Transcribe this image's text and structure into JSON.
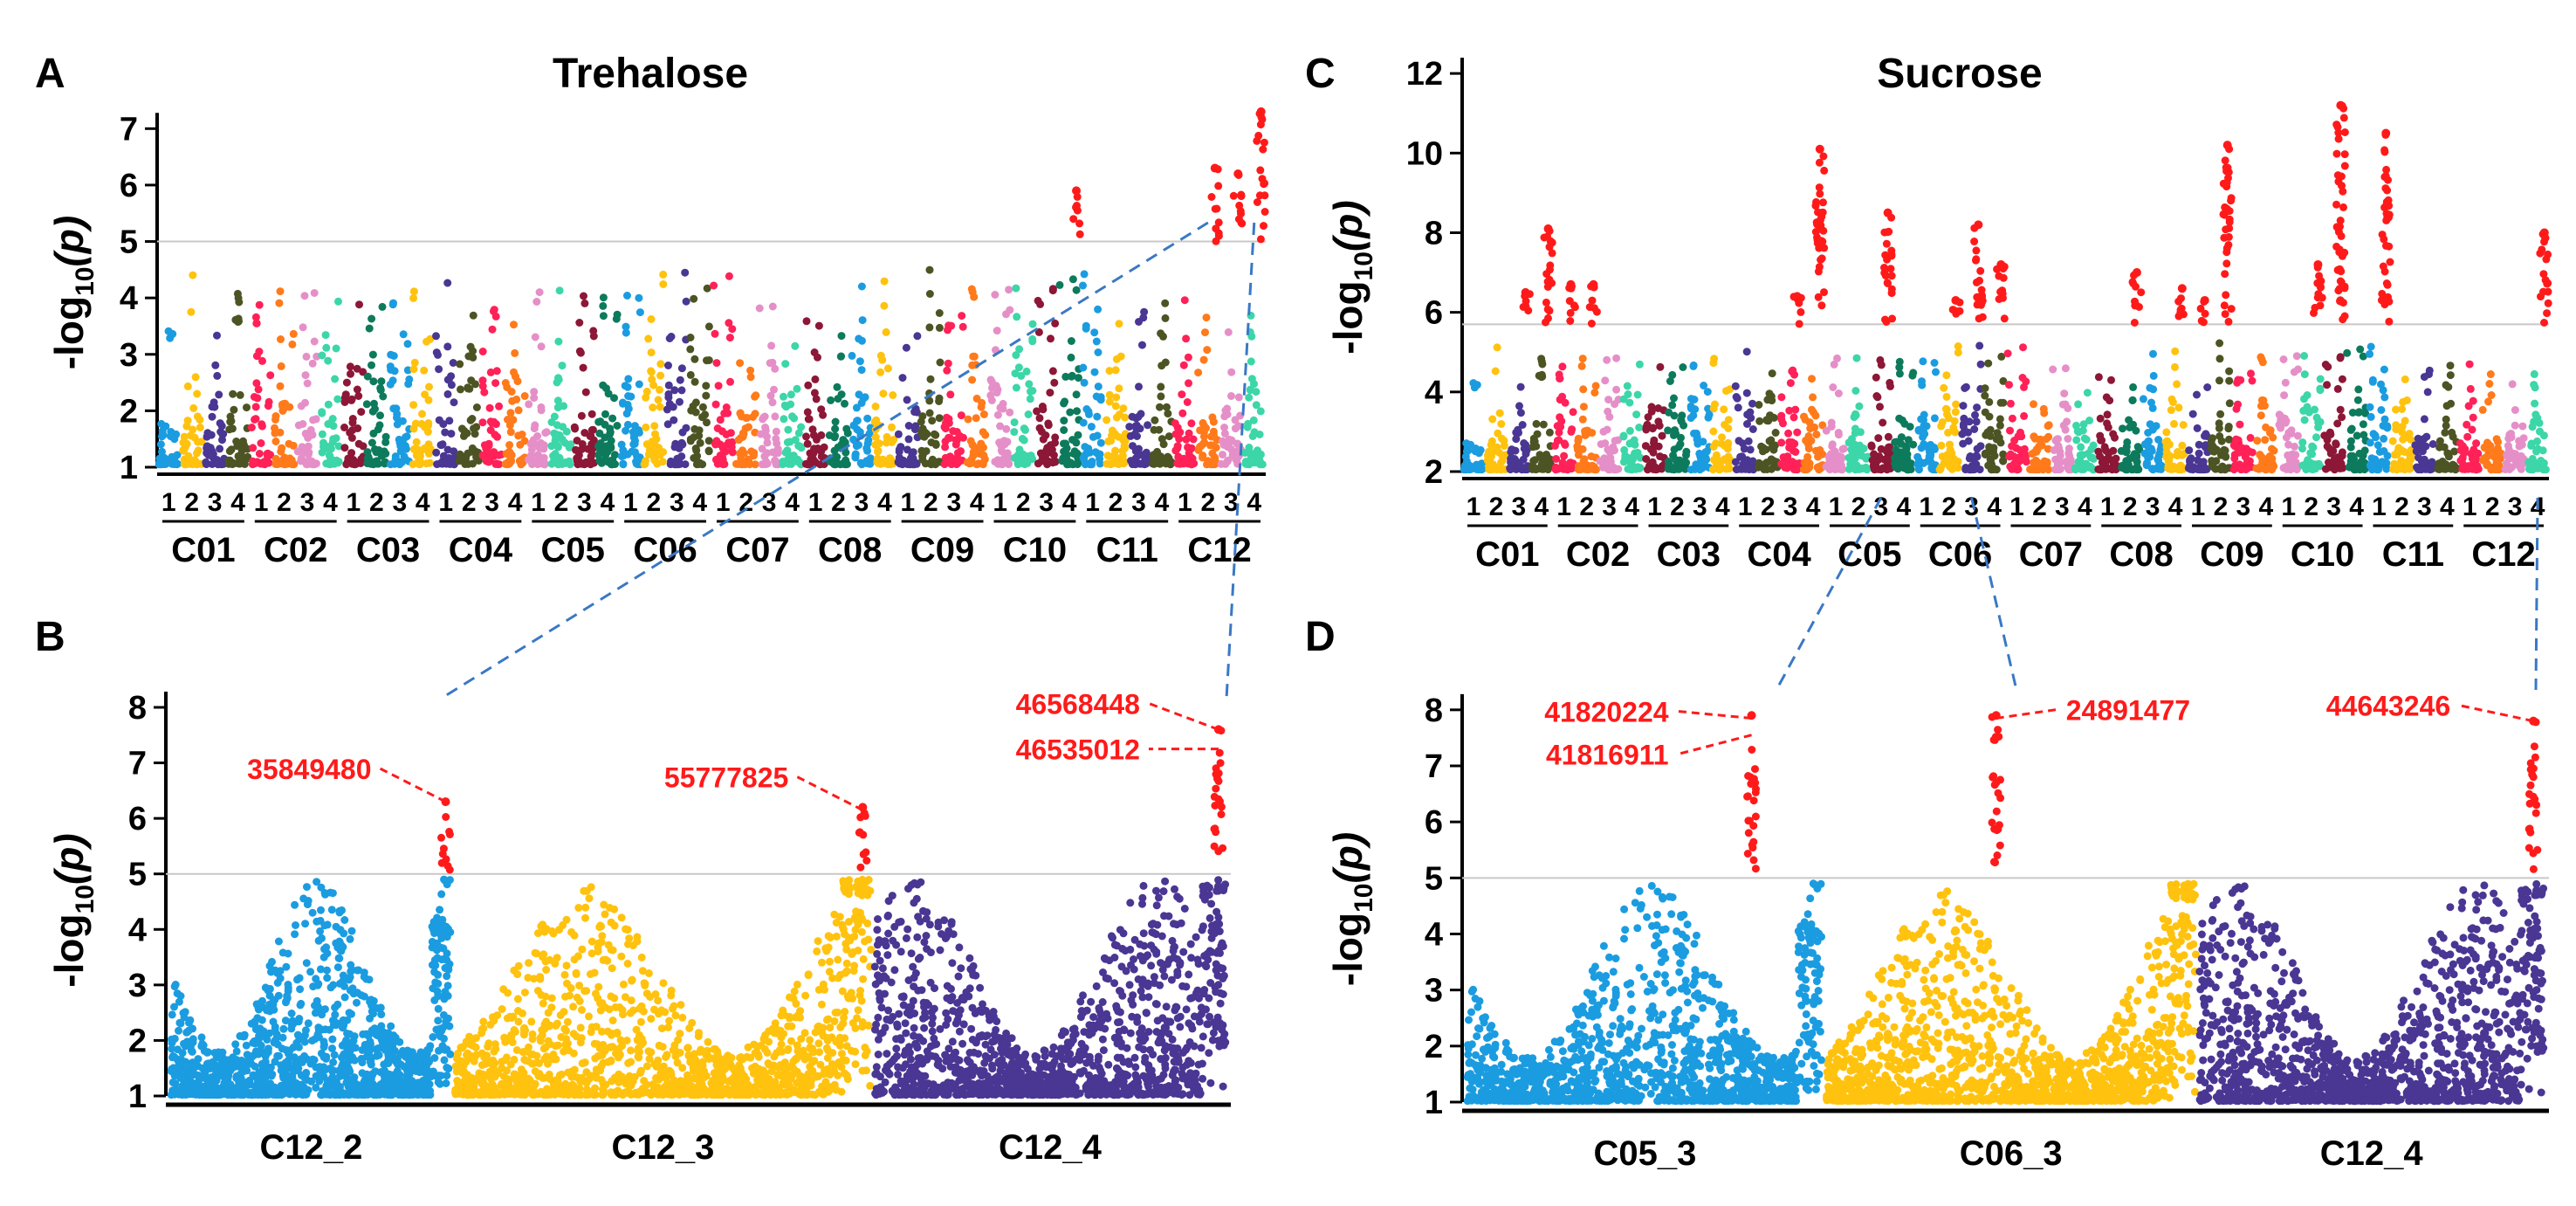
{
  "figure_colors": {
    "significant": "#ff1a1a",
    "threshold_line": "#c8c8c8",
    "axis": "#000000",
    "connector": "#3a78c4"
  },
  "chromosome_palette": [
    "#1b9ce0",
    "#ffc20e",
    "#4a3693",
    "#4d5424",
    "#ff2157",
    "#ff7a1a",
    "#e58fc8",
    "#3cd6a8",
    "#8c1736",
    "#0d7a5c"
  ],
  "chart_data": [
    {
      "panel": "A",
      "type": "scatter",
      "title": "Trehalose",
      "ylabel": "-log10(p)",
      "ylim": [
        1,
        7.5
      ],
      "yticks": [
        1,
        2,
        3,
        4,
        5,
        6,
        7
      ],
      "threshold": 5,
      "groups": [
        {
          "name": "C01",
          "subs": [
            "1",
            "2",
            "3",
            "4"
          ]
        },
        {
          "name": "C02",
          "subs": [
            "1",
            "2",
            "3",
            "4"
          ]
        },
        {
          "name": "C03",
          "subs": [
            "1",
            "2",
            "3",
            "4"
          ]
        },
        {
          "name": "C04",
          "subs": [
            "1",
            "2",
            "3",
            "4"
          ]
        },
        {
          "name": "C05",
          "subs": [
            "1",
            "2",
            "3",
            "4"
          ]
        },
        {
          "name": "C06",
          "subs": [
            "1",
            "2",
            "3",
            "4"
          ]
        },
        {
          "name": "C07",
          "subs": [
            "1",
            "2",
            "3",
            "4"
          ]
        },
        {
          "name": "C08",
          "subs": [
            "1",
            "2",
            "3",
            "4"
          ]
        },
        {
          "name": "C09",
          "subs": [
            "1",
            "2",
            "3",
            "4"
          ]
        },
        {
          "name": "C10",
          "subs": [
            "1",
            "2",
            "3",
            "4"
          ]
        },
        {
          "name": "C11",
          "subs": [
            "1",
            "2",
            "3",
            "4"
          ]
        },
        {
          "name": "C12",
          "subs": [
            "1",
            "2",
            "3",
            "4"
          ]
        }
      ],
      "peaks": [
        {
          "sub": "C10_4",
          "max": 5.9
        },
        {
          "sub": "C12_2",
          "max": 6.3
        },
        {
          "sub": "C12_3",
          "max": 6.2
        },
        {
          "sub": "C12_4",
          "max": 7.3
        }
      ]
    },
    {
      "panel": "B",
      "type": "scatter",
      "ylabel": "-log10(p)",
      "ylim": [
        1,
        8
      ],
      "yticks": [
        1,
        2,
        3,
        4,
        5,
        6,
        7,
        8
      ],
      "threshold": 5,
      "segments": [
        {
          "name": "C12_2",
          "color": "#1b9ce0"
        },
        {
          "name": "C12_3",
          "color": "#ffc20e"
        },
        {
          "name": "C12_4",
          "color": "#4a3693"
        }
      ],
      "peaks": [
        {
          "segment": "C12_2",
          "pos": 0.98,
          "max": 6.3
        },
        {
          "segment": "C12_3",
          "pos": 0.98,
          "max": 6.2
        },
        {
          "segment": "C12_4",
          "pos": 0.98,
          "max": 7.6
        }
      ],
      "annotations": [
        {
          "label": "35849480",
          "segment": "C12_2",
          "pos": 0.98,
          "y": 6.3
        },
        {
          "label": "55777825",
          "segment": "C12_3",
          "pos": 0.98,
          "y": 6.15
        },
        {
          "label": "46568448",
          "segment": "C12_4",
          "pos": 0.98,
          "y": 7.6
        },
        {
          "label": "46535012",
          "segment": "C12_4",
          "pos": 0.98,
          "y": 7.25
        }
      ]
    },
    {
      "panel": "C",
      "type": "scatter",
      "title": "Sucrose",
      "ylabel": "-log10(p)",
      "ylim": [
        2,
        12.2
      ],
      "yticks": [
        2,
        4,
        6,
        8,
        10,
        12
      ],
      "threshold": 5.7,
      "groups": [
        {
          "name": "C01",
          "subs": [
            "1",
            "2",
            "3",
            "4"
          ]
        },
        {
          "name": "C02",
          "subs": [
            "1",
            "2",
            "3",
            "4"
          ]
        },
        {
          "name": "C03",
          "subs": [
            "1",
            "2",
            "3",
            "4"
          ]
        },
        {
          "name": "C04",
          "subs": [
            "1",
            "2",
            "3",
            "4"
          ]
        },
        {
          "name": "C05",
          "subs": [
            "1",
            "2",
            "3",
            "4"
          ]
        },
        {
          "name": "C06",
          "subs": [
            "1",
            "2",
            "3",
            "4"
          ]
        },
        {
          "name": "C07",
          "subs": [
            "1",
            "2",
            "3",
            "4"
          ]
        },
        {
          "name": "C08",
          "subs": [
            "1",
            "2",
            "3",
            "4"
          ]
        },
        {
          "name": "C09",
          "subs": [
            "1",
            "2",
            "3",
            "4"
          ]
        },
        {
          "name": "C10",
          "subs": [
            "1",
            "2",
            "3",
            "4"
          ]
        },
        {
          "name": "C11",
          "subs": [
            "1",
            "2",
            "3",
            "4"
          ]
        },
        {
          "name": "C12",
          "subs": [
            "1",
            "2",
            "3",
            "4"
          ]
        }
      ],
      "peaks": [
        {
          "sub": "C01_3",
          "max": 6.5
        },
        {
          "sub": "C01_4",
          "max": 8.1
        },
        {
          "sub": "C02_1",
          "max": 6.7
        },
        {
          "sub": "C02_2",
          "max": 6.7
        },
        {
          "sub": "C04_3",
          "max": 6.4
        },
        {
          "sub": "C04_4",
          "max": 10.1
        },
        {
          "sub": "C05_3",
          "max": 8.5
        },
        {
          "sub": "C06_2",
          "max": 6.3
        },
        {
          "sub": "C06_3",
          "max": 8.2
        },
        {
          "sub": "C06_4",
          "max": 7.2
        },
        {
          "sub": "C08_2",
          "max": 7.0
        },
        {
          "sub": "C08_4",
          "max": 6.6
        },
        {
          "sub": "C09_1",
          "max": 6.3
        },
        {
          "sub": "C09_2",
          "max": 10.2
        },
        {
          "sub": "C10_2",
          "max": 7.2
        },
        {
          "sub": "C10_3",
          "max": 11.2
        },
        {
          "sub": "C11_1",
          "max": 10.5
        },
        {
          "sub": "C12_4",
          "max": 8.0
        }
      ]
    },
    {
      "panel": "D",
      "type": "scatter",
      "ylabel": "-log10(p)",
      "ylim": [
        1,
        8.2
      ],
      "yticks": [
        1,
        2,
        3,
        4,
        5,
        6,
        7,
        8
      ],
      "threshold": 5,
      "segments": [
        {
          "name": "C05_3",
          "color": "#1b9ce0"
        },
        {
          "name": "C06_3",
          "color": "#ffc20e"
        },
        {
          "name": "C12_4",
          "color": "#4a3693"
        }
      ],
      "peaks": [
        {
          "segment": "C05_3",
          "pos": 0.8,
          "max": 7.9
        },
        {
          "segment": "C06_3",
          "pos": 0.46,
          "max": 7.9
        },
        {
          "segment": "C12_4",
          "pos": 0.97,
          "max": 7.8
        }
      ],
      "annotations": [
        {
          "label": "41820224",
          "segment": "C05_3",
          "pos": 0.8,
          "y": 7.85
        },
        {
          "label": "41816911",
          "segment": "C05_3",
          "pos": 0.8,
          "y": 7.55
        },
        {
          "label": "24891477",
          "segment": "C06_3",
          "pos": 0.46,
          "y": 7.85
        },
        {
          "label": "44643246",
          "segment": "C12_4",
          "pos": 0.97,
          "y": 7.8
        }
      ]
    }
  ]
}
